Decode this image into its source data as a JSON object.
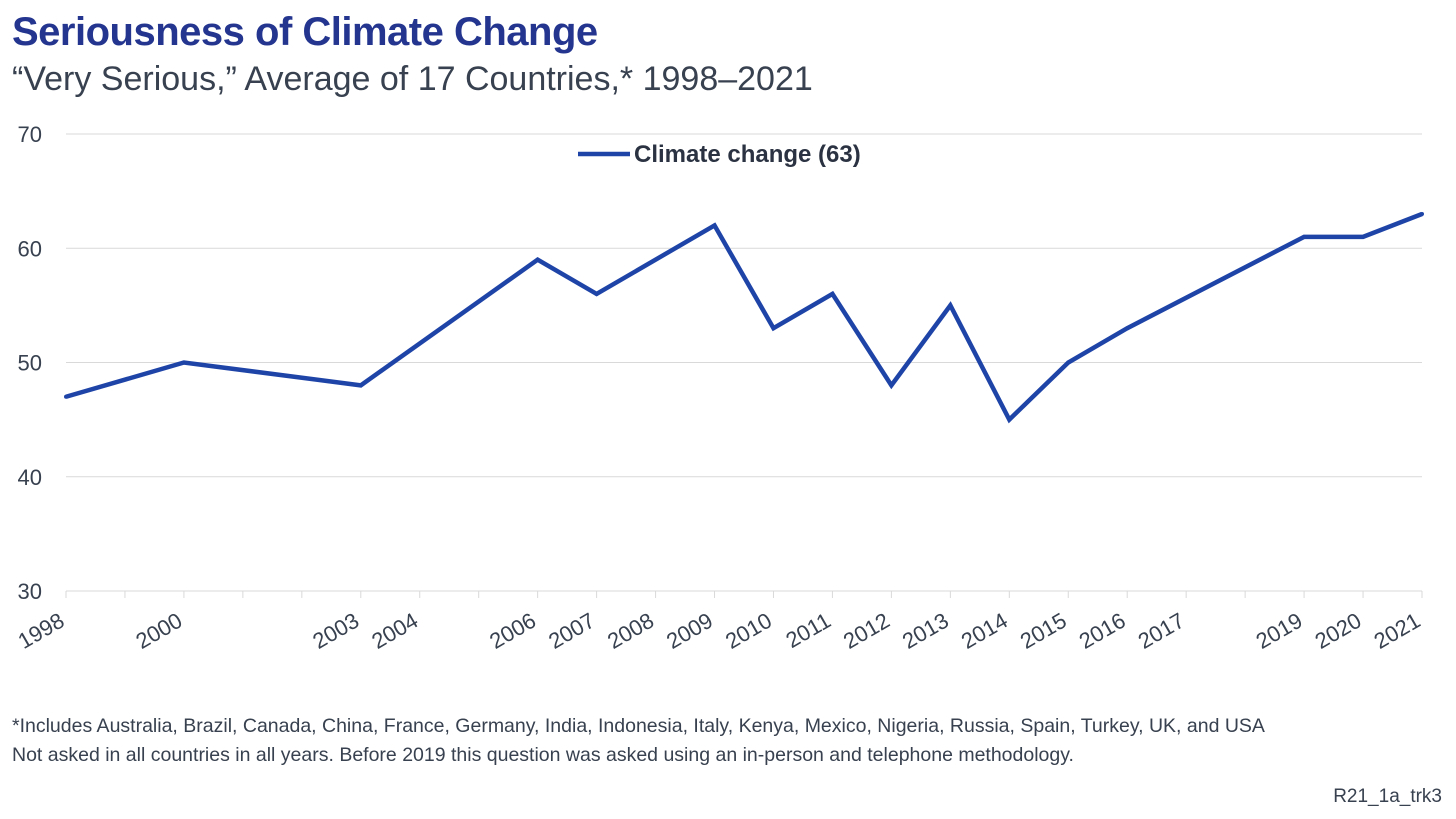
{
  "title": "Seriousness of Climate Change",
  "subtitle": "“Very Serious,” Average of 17 Countries,* 1998–2021",
  "footnotes": [
    "*Includes Australia, Brazil, Canada, China, France, Germany, India, Indonesia, Italy, Kenya, Mexico, Nigeria, Russia, Spain, Turkey, UK, and USA",
    "Not asked in all countries in all years. Before 2019 this question was asked using an in-person and telephone methodology."
  ],
  "chart_code": "R21_1a_trk3",
  "colors": {
    "series": "#1f44a8",
    "title": "#23358f",
    "grid": "#d9d9d9",
    "text": "#38414f"
  },
  "chart_data": {
    "type": "line",
    "title": "Seriousness of Climate Change",
    "subtitle": "“Very Serious,” Average of 17 Countries,* 1998–2021",
    "xlabel": "",
    "ylabel": "",
    "xlim": [
      1998,
      2021
    ],
    "ylim": [
      30,
      70
    ],
    "yticks": [
      30,
      40,
      50,
      60,
      70
    ],
    "x_tick_labels": [
      "1998",
      "2000",
      "2003",
      "2004",
      "2006",
      "2007",
      "2008",
      "2009",
      "2010",
      "2011",
      "2012",
      "2013",
      "2014",
      "2015",
      "2016",
      "2017",
      "2019",
      "2020",
      "2021"
    ],
    "grid": true,
    "legend_position": "top-center",
    "series": [
      {
        "name": "Climate change (63)",
        "color": "#1f44a8",
        "x": [
          1998,
          2000,
          2003,
          2006,
          2007,
          2009,
          2010,
          2011,
          2012,
          2013,
          2014,
          2015,
          2016,
          2019,
          2020,
          2021
        ],
        "values": [
          47,
          50,
          48,
          59,
          56,
          62,
          53,
          56,
          48,
          55,
          45,
          50,
          53,
          61,
          61,
          63
        ]
      }
    ]
  }
}
